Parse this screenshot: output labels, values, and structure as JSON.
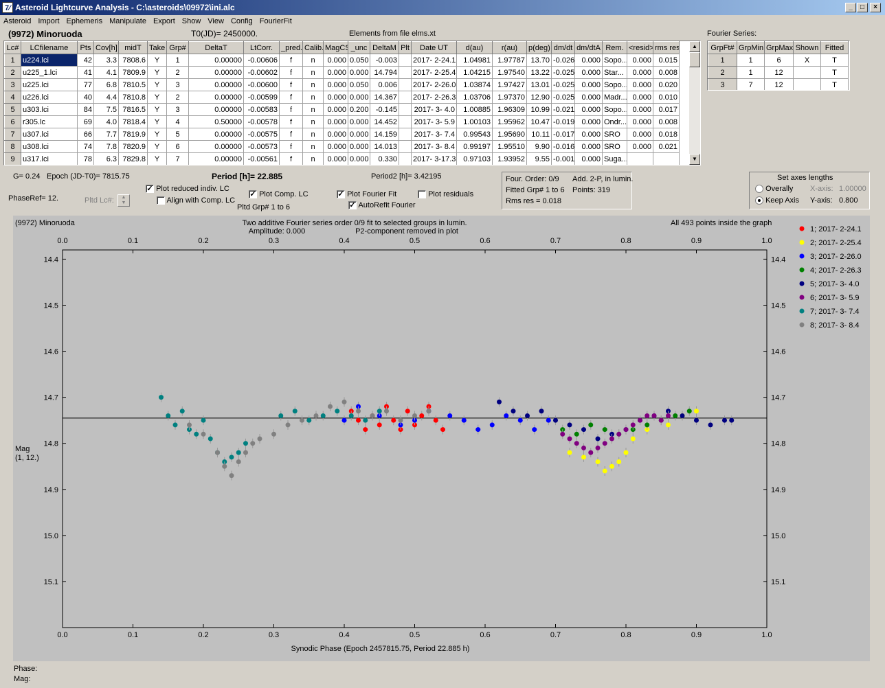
{
  "window": {
    "title": "Asteroid Lightcurve Analysis - C:\\asteroids\\09972\\ini.alc",
    "app_icon": "7⁄",
    "minimize": "_",
    "maximize": "□",
    "close": "×"
  },
  "menu": [
    "Asteroid",
    "Import",
    "Ephemeris",
    "Manipulate",
    "Export",
    "Show",
    "View",
    "Config",
    "FourierFit"
  ],
  "header": {
    "asteroid": "(9972) Minoruoda",
    "t0": "T0(JD)= 2450000.",
    "elements": "Elements from file elms.xt"
  },
  "table": {
    "columns": [
      "Lc#",
      "LCfilename",
      "Pts",
      "Cov[h]",
      "midT",
      "Take",
      "Grp#",
      "DeltaT",
      "LtCorr.",
      "_pred.",
      "Calib.",
      "MagCS",
      "_unc",
      "DeltaM",
      "Plt",
      "Date UT",
      "d(au)",
      "r(au)",
      "p(deg)",
      "dm/dt",
      "dm/dtA",
      "Rem.",
      "<resid>",
      "rms res"
    ],
    "rows": [
      [
        "1",
        "u224.lci",
        "42",
        "3.3",
        "7808.6",
        "Y",
        "1",
        "0.00000",
        "-0.00606",
        "f",
        "n",
        "0.000",
        "0.050",
        "-0.003",
        "",
        "2017- 2-24.1",
        "1.04981",
        "1.97787",
        "13.70",
        "-0.026",
        "0.000",
        "Sopo...",
        "0.000",
        "0.015"
      ],
      [
        "2",
        "u225_1.lci",
        "41",
        "4.1",
        "7809.9",
        "Y",
        "2",
        "0.00000",
        "-0.00602",
        "f",
        "n",
        "0.000",
        "0.000",
        "14.794",
        "",
        "2017- 2-25.4",
        "1.04215",
        "1.97540",
        "13.22",
        "-0.025",
        "0.000",
        "Star...",
        "0.000",
        "0.008"
      ],
      [
        "3",
        "u225.lci",
        "77",
        "6.8",
        "7810.5",
        "Y",
        "3",
        "0.00000",
        "-0.00600",
        "f",
        "n",
        "0.000",
        "0.050",
        "0.006",
        "",
        "2017- 2-26.0",
        "1.03874",
        "1.97427",
        "13.01",
        "-0.025",
        "0.000",
        "Sopo...",
        "0.000",
        "0.020"
      ],
      [
        "4",
        "u226.lci",
        "40",
        "4.4",
        "7810.8",
        "Y",
        "2",
        "0.00000",
        "-0.00599",
        "f",
        "n",
        "0.000",
        "0.000",
        "14.367",
        "",
        "2017- 2-26.3",
        "1.03706",
        "1.97370",
        "12.90",
        "-0.025",
        "0.000",
        "Madr...",
        "0.000",
        "0.010"
      ],
      [
        "5",
        "u303.lci",
        "84",
        "7.5",
        "7816.5",
        "Y",
        "3",
        "0.00000",
        "-0.00583",
        "f",
        "n",
        "0.000",
        "0.200",
        "-0.145",
        "",
        "2017- 3- 4.0",
        "1.00885",
        "1.96309",
        "10.99",
        "-0.021",
        "0.000",
        "Sopo...",
        "0.000",
        "0.017"
      ],
      [
        "6",
        "r305.lc",
        "69",
        "4.0",
        "7818.4",
        "Y",
        "4",
        "0.50000",
        "-0.00578",
        "f",
        "n",
        "0.000",
        "0.000",
        "14.452",
        "",
        "2017- 3- 5.9",
        "1.00103",
        "1.95962",
        "10.47",
        "-0.019",
        "0.000",
        "Ondr...",
        "0.000",
        "0.008"
      ],
      [
        "7",
        "u307.lci",
        "66",
        "7.7",
        "7819.9",
        "Y",
        "5",
        "0.00000",
        "-0.00575",
        "f",
        "n",
        "0.000",
        "0.000",
        "14.159",
        "",
        "2017- 3- 7.4",
        "0.99543",
        "1.95690",
        "10.11",
        "-0.017",
        "0.000",
        "SRO",
        "0.000",
        "0.018"
      ],
      [
        "8",
        "u308.lci",
        "74",
        "7.8",
        "7820.9",
        "Y",
        "6",
        "0.00000",
        "-0.00573",
        "f",
        "n",
        "0.000",
        "0.000",
        "14.013",
        "",
        "2017- 3- 8.4",
        "0.99197",
        "1.95510",
        "9.90",
        "-0.016",
        "0.000",
        "SRO",
        "0.000",
        "0.021"
      ],
      [
        "9",
        "u317.lci",
        "78",
        "6.3",
        "7829.8",
        "Y",
        "7",
        "0.00000",
        "-0.00561",
        "f",
        "n",
        "0.000",
        "0.000",
        "0.330",
        "",
        "2017- 3-17.3",
        "0.97103",
        "1.93952",
        "9.55",
        "-0.001",
        "0.000",
        "Suga...",
        "",
        ""
      ]
    ]
  },
  "fourier_series": {
    "label": "Fourier Series:",
    "columns": [
      "GrpFt#",
      "GrpMin",
      "GrpMax",
      "Shown",
      "Fitted"
    ],
    "rows": [
      [
        "1",
        "1",
        "6",
        "X",
        "T"
      ],
      [
        "2",
        "1",
        "12",
        "",
        "T"
      ],
      [
        "3",
        "7",
        "12",
        "",
        "T"
      ]
    ]
  },
  "controls": {
    "g": "G= 0.24",
    "epoch": "Epoch (JD-T0)= 7815.75",
    "period": "Period [h]= 22.885",
    "period2": "Period2 [h]= 3.42195",
    "phase_ref": "PhaseRef= 12.",
    "pltd_lc": "Pltd Lc#:",
    "plot_reduced": "Plot reduced indiv. LC",
    "align_comp": "Align with Comp. LC",
    "plot_comp": "Plot Comp. LC",
    "pltd_grp": "Pltd Grp#  1  to   6",
    "plot_fourier": "Plot Fourier Fit",
    "autorefit": "AutoRefit Fourier",
    "plot_resid": "Plot residuals",
    "check": "✓"
  },
  "fit_info": {
    "order": "Four. Order:  0/9",
    "add": "Add. 2-P, in lumin.",
    "fitted": "Fitted Grp# 1 to 6",
    "points": "Points: 319",
    "rms": "Rms res     = 0.018"
  },
  "axes_box": {
    "title": "Set axes lengths",
    "overally": "Overally",
    "keep": "Keep Axis",
    "xaxis_label": "X-axis:",
    "xaxis_value": "1.00000",
    "yaxis_label": "Y-axis:",
    "yaxis_value": "0.800"
  },
  "chart_data": {
    "type": "scatter",
    "title": "Two additive Fourier series order 0/9 fit to selected groups in lumin.",
    "subtitle": "Amplitude: 0.000",
    "subtitle2": "P2-component removed in plot",
    "top_left": "(9972) Minoruoda",
    "top_right": "All 493 points inside the graph",
    "xlabel": "Synodic Phase (Epoch 2457815.75, Period 22.885 h)",
    "ylabel": "Mag",
    "ylabel2": "(1, 12.)",
    "xlim": [
      0,
      1
    ],
    "ylim": [
      15.2,
      14.38
    ],
    "xticks": [
      "0.0",
      "0.1",
      "0.2",
      "0.3",
      "0.4",
      "0.5",
      "0.6",
      "0.7",
      "0.8",
      "0.9",
      "1.0"
    ],
    "yticks": [
      "14.4",
      "14.5",
      "14.6",
      "14.7",
      "14.8",
      "14.9",
      "15.0",
      "15.1"
    ],
    "fit_line": 14.745,
    "series": [
      {
        "name": "1; 2017- 2-24.1",
        "color": "#ff0000",
        "x": [
          0.41,
          0.42,
          0.43,
          0.44,
          0.45,
          0.46,
          0.47,
          0.48,
          0.49,
          0.5,
          0.51,
          0.52,
          0.53,
          0.54
        ],
        "y": [
          14.73,
          14.75,
          14.77,
          14.74,
          14.76,
          14.72,
          14.75,
          14.77,
          14.73,
          14.76,
          14.74,
          14.72,
          14.75,
          14.77
        ]
      },
      {
        "name": "2; 2017- 2-25.4",
        "color": "#ffff00",
        "x": [
          0.72,
          0.74,
          0.76,
          0.77,
          0.78,
          0.79,
          0.8,
          0.81,
          0.83,
          0.86,
          0.88,
          0.9
        ],
        "y": [
          14.82,
          14.83,
          14.84,
          14.86,
          14.85,
          14.84,
          14.82,
          14.79,
          14.77,
          14.76,
          14.74,
          14.73
        ]
      },
      {
        "name": "3; 2017- 2-26.0",
        "color": "#0000ff",
        "x": [
          0.4,
          0.42,
          0.45,
          0.48,
          0.5,
          0.52,
          0.55,
          0.57,
          0.59,
          0.61,
          0.63,
          0.65,
          0.67,
          0.69
        ],
        "y": [
          14.75,
          14.72,
          14.74,
          14.76,
          14.75,
          14.73,
          14.74,
          14.75,
          14.77,
          14.76,
          14.74,
          14.75,
          14.77,
          14.75
        ]
      },
      {
        "name": "4; 2017- 2-26.3",
        "color": "#008000",
        "x": [
          0.71,
          0.73,
          0.75,
          0.77,
          0.79,
          0.81,
          0.83,
          0.85,
          0.87,
          0.89
        ],
        "y": [
          14.77,
          14.78,
          14.76,
          14.77,
          14.78,
          14.77,
          14.76,
          14.75,
          14.74,
          14.73
        ]
      },
      {
        "name": "5; 2017- 3- 4.0",
        "color": "#000080",
        "x": [
          0.62,
          0.64,
          0.66,
          0.68,
          0.7,
          0.72,
          0.74,
          0.76,
          0.78,
          0.8,
          0.82,
          0.84,
          0.86,
          0.88,
          0.9,
          0.92,
          0.94,
          0.95
        ],
        "y": [
          14.71,
          14.73,
          14.74,
          14.73,
          14.75,
          14.76,
          14.77,
          14.79,
          14.78,
          14.77,
          14.75,
          14.74,
          14.73,
          14.74,
          14.75,
          14.76,
          14.75,
          14.75
        ]
      },
      {
        "name": "6; 2017- 3- 5.9",
        "color": "#800080",
        "x": [
          0.71,
          0.72,
          0.73,
          0.74,
          0.75,
          0.76,
          0.77,
          0.78,
          0.79,
          0.8,
          0.81,
          0.82,
          0.83,
          0.84,
          0.85,
          0.86
        ],
        "y": [
          14.78,
          14.79,
          14.8,
          14.81,
          14.82,
          14.81,
          14.8,
          14.79,
          14.78,
          14.77,
          14.76,
          14.75,
          14.74,
          14.74,
          14.75,
          14.74
        ]
      },
      {
        "name": "7; 2017- 3- 7.4",
        "color": "#008080",
        "x": [
          0.14,
          0.15,
          0.16,
          0.17,
          0.18,
          0.19,
          0.2,
          0.21,
          0.22,
          0.23,
          0.24,
          0.25,
          0.26,
          0.31,
          0.33,
          0.35,
          0.37,
          0.39,
          0.41,
          0.43,
          0.45
        ],
        "y": [
          14.7,
          14.74,
          14.76,
          14.73,
          14.77,
          14.78,
          14.75,
          14.79,
          14.82,
          14.84,
          14.83,
          14.82,
          14.8,
          14.74,
          14.73,
          14.75,
          14.74,
          14.73,
          14.74,
          14.75,
          14.73
        ]
      },
      {
        "name": "8; 2017- 3- 8.4",
        "color": "#808080",
        "x": [
          0.18,
          0.2,
          0.22,
          0.23,
          0.24,
          0.25,
          0.26,
          0.27,
          0.28,
          0.3,
          0.32,
          0.34,
          0.36,
          0.38,
          0.4,
          0.42,
          0.44,
          0.46,
          0.48,
          0.5,
          0.52
        ],
        "y": [
          14.76,
          14.78,
          14.82,
          14.85,
          14.87,
          14.84,
          14.82,
          14.8,
          14.79,
          14.78,
          14.76,
          14.75,
          14.74,
          14.72,
          14.71,
          14.73,
          14.74,
          14.73,
          14.75,
          14.74,
          14.73
        ]
      }
    ]
  },
  "status": {
    "phase": "Phase:",
    "mag": "Mag:"
  }
}
